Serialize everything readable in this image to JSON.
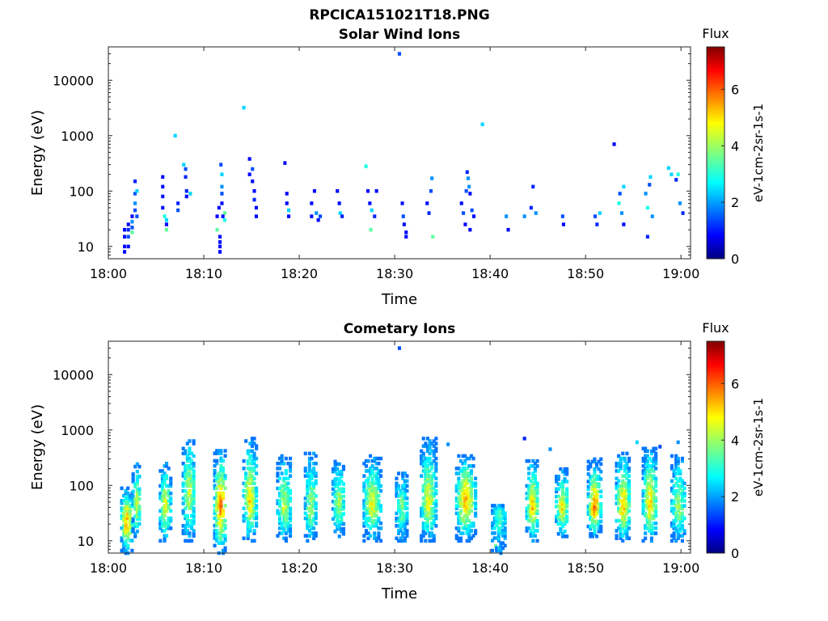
{
  "figure": {
    "title": "RPCICA151021T18.PNG"
  },
  "chart_data": [
    {
      "type": "heatmap",
      "title": "Solar Wind Ions",
      "xlabel": "Time",
      "ylabel": "Energy (eV)",
      "x_ticks": [
        "18:00",
        "18:10",
        "18:20",
        "18:30",
        "18:40",
        "18:50",
        "19:00"
      ],
      "y_ticks": [
        "10",
        "100",
        "1000",
        "10000"
      ],
      "y_scale": "log",
      "xlim_min": [
        0,
        61
      ],
      "ylim": [
        6,
        40000
      ],
      "colorbar": {
        "title": "Flux",
        "label": "eV-1cm-2sr-1s-1",
        "ticks": [
          "0",
          "2",
          "4",
          "6"
        ],
        "range": [
          0,
          7.5
        ],
        "colormap": "jet"
      },
      "data_columns": [
        "time_min",
        "energy_eV",
        "flux"
      ],
      "data": [
        [
          1.7,
          20,
          1.0
        ],
        [
          1.7,
          15,
          1.0
        ],
        [
          1.7,
          10,
          1.0
        ],
        [
          1.7,
          8,
          1.0
        ],
        [
          2.1,
          25,
          1.0
        ],
        [
          2.1,
          20,
          1.2
        ],
        [
          2.1,
          15,
          1.5
        ],
        [
          2.1,
          10,
          1.0
        ],
        [
          2.5,
          35,
          1.0
        ],
        [
          2.5,
          28,
          2.0
        ],
        [
          2.5,
          22,
          1.5
        ],
        [
          2.5,
          18,
          3.5
        ],
        [
          2.8,
          45,
          1.5
        ],
        [
          2.8,
          60,
          2.0
        ],
        [
          2.8,
          90,
          1.5
        ],
        [
          2.8,
          150,
          1.2
        ],
        [
          3.0,
          35,
          1.5
        ],
        [
          3.0,
          100,
          2.5
        ],
        [
          5.7,
          180,
          1.0
        ],
        [
          5.7,
          120,
          1.0
        ],
        [
          5.7,
          80,
          1.0
        ],
        [
          5.7,
          50,
          1.0
        ],
        [
          5.9,
          35,
          3.0
        ],
        [
          6.1,
          30,
          2.5
        ],
        [
          6.1,
          25,
          1.0
        ],
        [
          6.1,
          20,
          3.5
        ],
        [
          7.3,
          60,
          1.2
        ],
        [
          7.3,
          45,
          1.5
        ],
        [
          7.0,
          1000,
          2.5
        ],
        [
          7.9,
          300,
          2.5
        ],
        [
          8.1,
          250,
          1.5
        ],
        [
          8.1,
          180,
          1.2
        ],
        [
          8.2,
          100,
          1.2
        ],
        [
          8.2,
          80,
          1.0
        ],
        [
          8.6,
          90,
          2.5
        ],
        [
          11.4,
          35,
          1.0
        ],
        [
          11.4,
          20,
          3.5
        ],
        [
          11.6,
          50,
          1.0
        ],
        [
          11.7,
          15,
          1.0
        ],
        [
          11.7,
          12,
          1.0
        ],
        [
          11.7,
          10,
          1.0
        ],
        [
          11.7,
          8,
          1.0
        ],
        [
          11.8,
          300,
          1.5
        ],
        [
          11.9,
          200,
          2.5
        ],
        [
          11.9,
          120,
          2.0
        ],
        [
          11.9,
          90,
          1.5
        ],
        [
          11.9,
          60,
          1.0
        ],
        [
          12.2,
          40,
          3.5
        ],
        [
          12.2,
          30,
          3.0
        ],
        [
          12.0,
          35,
          1.0
        ],
        [
          14.2,
          3200,
          2.5
        ],
        [
          14.8,
          380,
          1.0
        ],
        [
          14.8,
          200,
          1.0
        ],
        [
          15.1,
          250,
          1.5
        ],
        [
          15.1,
          150,
          1.0
        ],
        [
          15.3,
          100,
          1.0
        ],
        [
          15.3,
          70,
          1.2
        ],
        [
          15.5,
          50,
          1.0
        ],
        [
          15.5,
          35,
          1.0
        ],
        [
          18.5,
          320,
          1.0
        ],
        [
          18.7,
          90,
          1.0
        ],
        [
          18.7,
          60,
          1.0
        ],
        [
          18.9,
          45,
          2.5
        ],
        [
          18.9,
          35,
          1.0
        ],
        [
          21.3,
          60,
          1.0
        ],
        [
          21.3,
          35,
          1.0
        ],
        [
          21.6,
          100,
          1.0
        ],
        [
          21.8,
          40,
          2.0
        ],
        [
          22.0,
          30,
          1.0
        ],
        [
          22.2,
          35,
          1.5
        ],
        [
          24.0,
          100,
          1.0
        ],
        [
          24.2,
          60,
          1.0
        ],
        [
          24.3,
          40,
          2.5
        ],
        [
          24.5,
          35,
          1.2
        ],
        [
          27.0,
          280,
          3.0
        ],
        [
          27.2,
          100,
          1.0
        ],
        [
          27.4,
          60,
          1.0
        ],
        [
          27.6,
          45,
          2.5
        ],
        [
          27.9,
          35,
          1.2
        ],
        [
          28.1,
          100,
          1.0
        ],
        [
          27.5,
          20,
          3.5
        ],
        [
          30.5,
          30000,
          1.5
        ],
        [
          30.8,
          60,
          1.0
        ],
        [
          30.9,
          35,
          1.5
        ],
        [
          31.0,
          25,
          1.0
        ],
        [
          31.2,
          18,
          1.0
        ],
        [
          31.2,
          15,
          1.0
        ],
        [
          33.4,
          60,
          1.0
        ],
        [
          33.6,
          40,
          1.2
        ],
        [
          33.8,
          100,
          1.5
        ],
        [
          33.9,
          170,
          2.0
        ],
        [
          34.0,
          15,
          3.5
        ],
        [
          37.0,
          60,
          1.0
        ],
        [
          37.2,
          40,
          1.5
        ],
        [
          37.4,
          25,
          1.0
        ],
        [
          37.5,
          100,
          1.5
        ],
        [
          37.6,
          220,
          1.2
        ],
        [
          37.7,
          170,
          2.0
        ],
        [
          37.8,
          120,
          2.0
        ],
        [
          37.9,
          90,
          1.0
        ],
        [
          37.9,
          20,
          1.0
        ],
        [
          38.1,
          45,
          1.5
        ],
        [
          38.3,
          35,
          1.0
        ],
        [
          39.2,
          1600,
          2.5
        ],
        [
          41.7,
          35,
          2.0
        ],
        [
          41.9,
          20,
          1.0
        ],
        [
          43.6,
          35,
          2.0
        ],
        [
          44.3,
          50,
          1.2
        ],
        [
          44.5,
          120,
          1.2
        ],
        [
          44.8,
          40,
          2.0
        ],
        [
          47.6,
          35,
          1.5
        ],
        [
          47.7,
          25,
          1.0
        ],
        [
          51.0,
          35,
          1.5
        ],
        [
          51.2,
          25,
          1.2
        ],
        [
          51.5,
          40,
          2.5
        ],
        [
          53.0,
          700,
          1.0
        ],
        [
          53.5,
          60,
          3.0
        ],
        [
          53.6,
          90,
          1.5
        ],
        [
          53.8,
          40,
          2.0
        ],
        [
          54.0,
          120,
          2.5
        ],
        [
          54.0,
          25,
          1.0
        ],
        [
          56.3,
          90,
          2.0
        ],
        [
          56.5,
          50,
          3.0
        ],
        [
          56.7,
          130,
          1.5
        ],
        [
          56.8,
          180,
          2.5
        ],
        [
          56.5,
          15,
          1.2
        ],
        [
          57.0,
          35,
          2.0
        ],
        [
          58.7,
          260,
          2.5
        ],
        [
          59.0,
          200,
          2.5
        ],
        [
          59.5,
          160,
          1.2
        ],
        [
          59.7,
          200,
          3.0
        ],
        [
          59.9,
          60,
          2.0
        ],
        [
          60.2,
          40,
          1.2
        ]
      ]
    },
    {
      "type": "heatmap",
      "title": "Cometary Ions",
      "xlabel": "Time",
      "ylabel": "Energy (eV)",
      "x_ticks": [
        "18:00",
        "18:10",
        "18:20",
        "18:30",
        "18:40",
        "18:50",
        "19:00"
      ],
      "y_ticks": [
        "10",
        "100",
        "1000",
        "10000"
      ],
      "y_scale": "log",
      "xlim_min": [
        0,
        61
      ],
      "ylim": [
        6,
        40000
      ],
      "colorbar": {
        "title": "Flux",
        "label": "eV-1cm-2sr-1s-1",
        "ticks": [
          "0",
          "2",
          "4",
          "6"
        ],
        "range": [
          0,
          7.5
        ],
        "colormap": "jet"
      },
      "data_columns": [
        "time_min",
        "energy_eV",
        "flux"
      ],
      "burst_columns": [
        "t_center_min",
        "t_width_min",
        "e_low_eV",
        "e_high_eV",
        "e_peak_eV",
        "peak_flux"
      ],
      "bursts": [
        [
          2.0,
          1.2,
          6,
          90,
          22,
          6.3
        ],
        [
          3.0,
          0.8,
          12,
          250,
          45,
          5.2
        ],
        [
          6.0,
          1.1,
          10,
          250,
          40,
          5.4
        ],
        [
          8.5,
          1.3,
          10,
          700,
          70,
          5.0
        ],
        [
          11.8,
          1.3,
          6,
          450,
          40,
          6.3
        ],
        [
          14.9,
          1.4,
          10,
          700,
          50,
          5.6
        ],
        [
          18.5,
          1.5,
          10,
          350,
          40,
          4.8
        ],
        [
          21.3,
          1.3,
          10,
          400,
          40,
          4.6
        ],
        [
          24.2,
          1.3,
          12,
          300,
          45,
          4.6
        ],
        [
          27.7,
          1.8,
          10,
          350,
          45,
          5.2
        ],
        [
          30.8,
          1.2,
          10,
          180,
          40,
          4.3
        ],
        [
          33.6,
          1.6,
          10,
          700,
          50,
          5.2
        ],
        [
          37.5,
          2.0,
          10,
          350,
          55,
          6.0
        ],
        [
          41.0,
          1.5,
          6,
          45,
          35,
          4.0
        ],
        [
          44.5,
          1.3,
          10,
          300,
          40,
          5.8
        ],
        [
          47.6,
          1.3,
          12,
          200,
          40,
          5.4
        ],
        [
          51.0,
          1.4,
          12,
          300,
          40,
          6.3
        ],
        [
          54.0,
          1.5,
          10,
          400,
          40,
          5.8
        ],
        [
          56.8,
          1.5,
          10,
          500,
          45,
          5.8
        ],
        [
          59.8,
          1.5,
          10,
          350,
          40,
          4.6
        ]
      ],
      "data": [
        [
          30.5,
          30000,
          1.5
        ],
        [
          35.6,
          550,
          2.0
        ],
        [
          43.6,
          700,
          1.2
        ],
        [
          46.3,
          450,
          2.0
        ],
        [
          57.8,
          500,
          1.5
        ],
        [
          59.7,
          600,
          2.0
        ],
        [
          55.4,
          600,
          2.5
        ],
        [
          40.6,
          8,
          3.5
        ]
      ]
    }
  ]
}
